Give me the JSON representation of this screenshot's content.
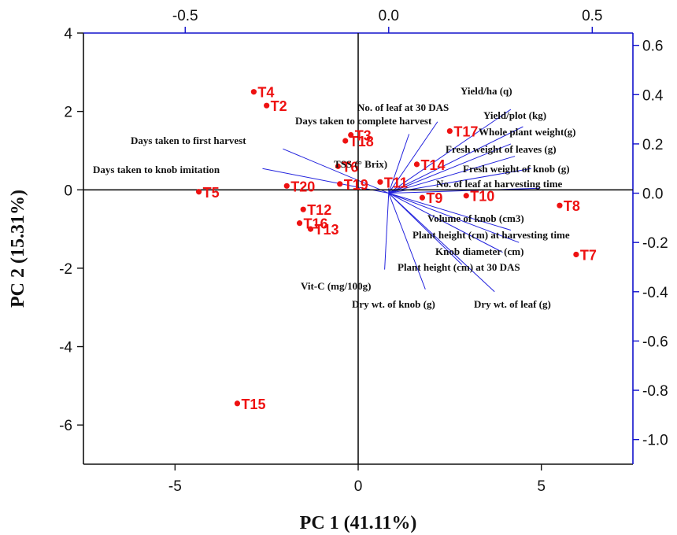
{
  "chart_data": {
    "type": "scatter",
    "subtype": "pca-biplot",
    "xlabel": "PC 1 (41.11%)",
    "ylabel": "PC 2 (15.31%)",
    "xlim": [
      -7.5,
      7.5
    ],
    "ylim": [
      -7,
      4
    ],
    "xticks": [
      -5,
      0,
      5
    ],
    "yticks": [
      -6,
      -4,
      -2,
      0,
      2,
      4
    ],
    "loading_xlim": [
      -0.75,
      0.6
    ],
    "loading_ylim": [
      -1.1,
      0.65
    ],
    "top_ticks": [
      -0.5,
      0.0,
      0.5
    ],
    "right_ticks": [
      -1.0,
      -0.8,
      -0.6,
      -0.4,
      -0.2,
      0.0,
      0.2,
      0.4,
      0.6
    ],
    "tick_labels": {
      "bottom": [
        "-5",
        "0",
        "5"
      ],
      "left": [
        "-6",
        "-4",
        "-2",
        "0",
        "2",
        "4"
      ],
      "top": [
        "-0.5",
        "0.0",
        "0.5"
      ],
      "right": [
        "-1.0",
        "-0.8",
        "-0.6",
        "-0.4",
        "-0.2",
        "0.0",
        "0.2",
        "0.4",
        "0.6"
      ]
    },
    "grid": false,
    "colors": {
      "points": "#ee1111",
      "vectors": "#2222dd",
      "secondary_axis": "#1111cc",
      "axes": "#111111"
    },
    "points": [
      {
        "label": "T4",
        "x": -2.85,
        "y": 2.5
      },
      {
        "label": "T2",
        "x": -2.5,
        "y": 2.15
      },
      {
        "label": "T3",
        "x": -0.2,
        "y": 1.4
      },
      {
        "label": "T18",
        "x": -0.35,
        "y": 1.25
      },
      {
        "label": "T17",
        "x": 2.5,
        "y": 1.5
      },
      {
        "label": "T14",
        "x": 1.6,
        "y": 0.65
      },
      {
        "label": "T6",
        "x": -0.55,
        "y": 0.6
      },
      {
        "label": "T19",
        "x": -0.5,
        "y": 0.15
      },
      {
        "label": "T11",
        "x": 0.6,
        "y": 0.2
      },
      {
        "label": "T20",
        "x": -1.95,
        "y": 0.1
      },
      {
        "label": "T5",
        "x": -4.35,
        "y": -0.05
      },
      {
        "label": "T9",
        "x": 1.75,
        "y": -0.2
      },
      {
        "label": "T10",
        "x": 2.95,
        "y": -0.15
      },
      {
        "label": "T8",
        "x": 5.5,
        "y": -0.4
      },
      {
        "label": "T12",
        "x": -1.5,
        "y": -0.5
      },
      {
        "label": "T16",
        "x": -1.6,
        "y": -0.85
      },
      {
        "label": "T13",
        "x": -1.3,
        "y": -1.0
      },
      {
        "label": "T7",
        "x": 5.95,
        "y": -1.65
      },
      {
        "label": "T15",
        "x": -3.3,
        "y": -5.45
      }
    ],
    "loadings": [
      {
        "name": "Yield/ha (q)",
        "x": 0.3,
        "y": 0.34
      },
      {
        "name": "No. of leaf at 30 DAS",
        "x": 0.12,
        "y": 0.29
      },
      {
        "name": "Days taken to complete harvest",
        "x": 0.05,
        "y": 0.24
      },
      {
        "name": "Yield/plot (kg)",
        "x": 0.33,
        "y": 0.27
      },
      {
        "name": "Whole plant weight(g)",
        "x": 0.3,
        "y": 0.2
      },
      {
        "name": "Fresh weight of leaves (g)",
        "x": 0.31,
        "y": 0.15
      },
      {
        "name": "Fresh weight of knob (g)",
        "x": 0.35,
        "y": 0.1
      },
      {
        "name": "No. of leaf at harvesting time",
        "x": 0.37,
        "y": 0.02
      },
      {
        "name": "Days taken to first harvest",
        "x": -0.26,
        "y": 0.18
      },
      {
        "name": "Days taken to knob imitation",
        "x": -0.31,
        "y": 0.1
      },
      {
        "name": "TSS (° Brix)",
        "x": 0.0,
        "y": 0.02
      },
      {
        "name": "Volume of knob (cm3)",
        "x": 0.3,
        "y": -0.15
      },
      {
        "name": "Plant height (cm) at harvesting time",
        "x": 0.32,
        "y": -0.2
      },
      {
        "name": "Knob diameter (cm)",
        "x": 0.28,
        "y": -0.24
      },
      {
        "name": "Plant height (cm) at 30 DAS",
        "x": 0.18,
        "y": -0.29
      },
      {
        "name": "Vit-C (mg/100g)",
        "x": -0.01,
        "y": -0.31
      },
      {
        "name": "Dry wt. of knob (g)",
        "x": 0.09,
        "y": -0.39
      },
      {
        "name": "Dry wt. of leaf (g)",
        "x": 0.26,
        "y": -0.4
      }
    ]
  }
}
